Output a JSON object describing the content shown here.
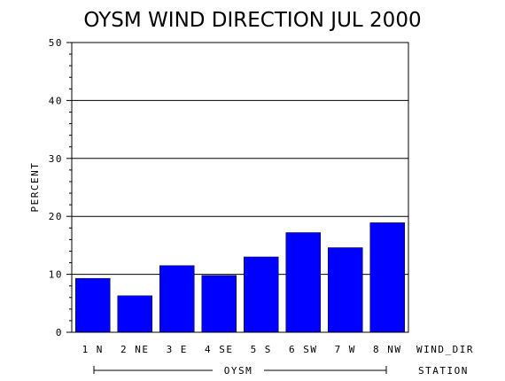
{
  "chart_data": {
    "type": "bar",
    "title": "OYSM WIND DIRECTION JUL 2000",
    "ylabel": "PERCENT",
    "xlabel": "WIND_DIR",
    "group_axis_label": "STATION",
    "group_label": "OYSM",
    "categories": [
      "1 N",
      "2 NE",
      "3 E",
      "4 SE",
      "5 S",
      "6 SW",
      "7 W",
      "8 NW"
    ],
    "values": [
      9.3,
      6.3,
      11.5,
      9.8,
      13.0,
      17.2,
      14.6,
      18.9
    ],
    "ylim": [
      0,
      50
    ],
    "yticks": [
      0,
      10,
      20,
      30,
      40,
      50
    ],
    "grid": true,
    "bar_color": "#0000ff"
  }
}
